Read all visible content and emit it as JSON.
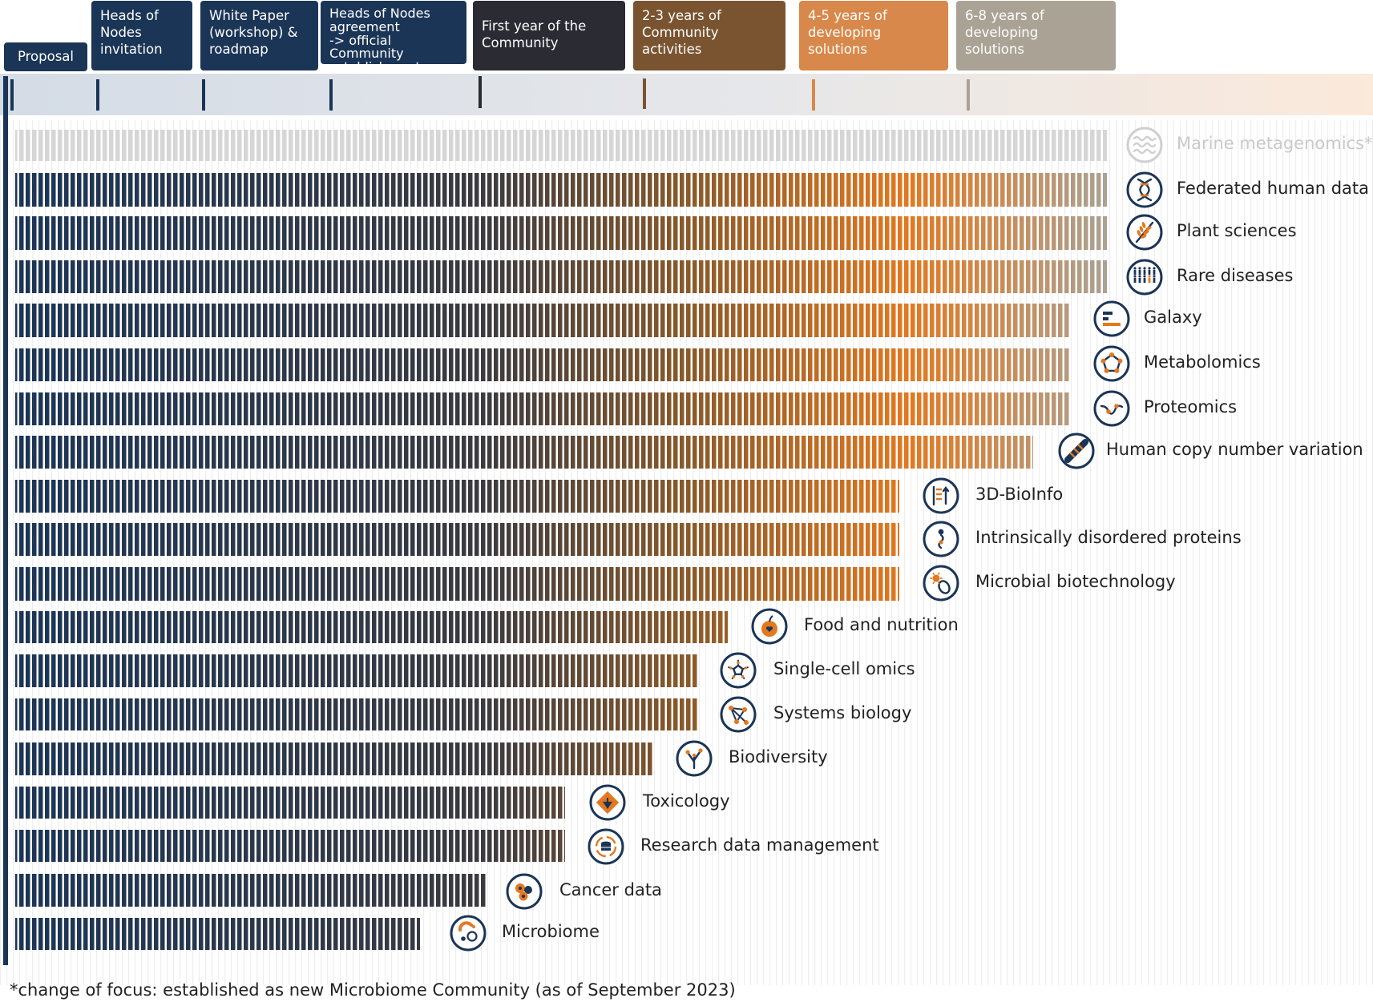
{
  "milestones": [
    {
      "id": "proposal",
      "label": "Proposal",
      "color": "#1b3557"
    },
    {
      "id": "invitation",
      "label": "Heads of\nNodes\ninvitation",
      "color": "#1b3557"
    },
    {
      "id": "whitepaper",
      "label": "White Paper\n(workshop) &\nroadmap",
      "color": "#1b3557"
    },
    {
      "id": "agreement",
      "label": "Heads of Nodes\nagreement\n-> official Community\nestablishment",
      "color": "#1b3557"
    },
    {
      "id": "firstyear",
      "label": "First year of the\nCommunity",
      "color": "#2b2b33"
    },
    {
      "id": "activities",
      "label": "2-3 years of\nCommunity\nactivities",
      "color": "#7a5430"
    },
    {
      "id": "developing45",
      "label": "4-5 years of\ndeveloping\nsolutions",
      "color": "#d8884a"
    },
    {
      "id": "developing68",
      "label": "6-8 years of\ndeveloping\nsolutions",
      "color": "#aaa294"
    }
  ],
  "communities": [
    {
      "name": "Marine metagenomics*",
      "stage": "6-8 years of developing solutions",
      "icon": "waves-icon",
      "faded": true
    },
    {
      "name": "Federated human data",
      "stage": "6-8 years of developing solutions",
      "icon": "dna-helix-icon"
    },
    {
      "name": "Plant sciences",
      "stage": "6-8 years of developing solutions",
      "icon": "wheat-icon"
    },
    {
      "name": "Rare diseases",
      "stage": "6-8 years of developing solutions",
      "icon": "people-icon"
    },
    {
      "name": "Galaxy",
      "stage": "6-8 years of developing solutions",
      "icon": "galaxy-bars-icon"
    },
    {
      "name": "Metabolomics",
      "stage": "6-8 years of developing solutions",
      "icon": "molecule-ring-icon"
    },
    {
      "name": "Proteomics",
      "stage": "6-8 years of developing solutions",
      "icon": "wave-peaks-icon"
    },
    {
      "name": "Human copy number variation",
      "stage": "6-8 years of developing solutions",
      "icon": "chromosome-icon"
    },
    {
      "name": "3D-BioInfo",
      "stage": "4-5 years of developing solutions",
      "icon": "protein-structure-icon"
    },
    {
      "name": "Intrinsically disordered proteins",
      "stage": "4-5 years of developing solutions",
      "icon": "disordered-chain-icon"
    },
    {
      "name": "Microbial biotechnology",
      "stage": "4-5 years of developing solutions",
      "icon": "microbe-icon"
    },
    {
      "name": "Food and nutrition",
      "stage": "2-3 years of Community activities",
      "icon": "apple-icon"
    },
    {
      "name": "Single-cell omics",
      "stage": "2-3 years of Community activities",
      "icon": "cell-icon"
    },
    {
      "name": "Systems biology",
      "stage": "2-3 years of Community activities",
      "icon": "network-icon"
    },
    {
      "name": "Biodiversity",
      "stage": "2-3 years of Community activities",
      "icon": "tree-icon"
    },
    {
      "name": "Toxicology",
      "stage": "2-3 years of Community activities",
      "icon": "hazard-diamond-icon"
    },
    {
      "name": "Research data management",
      "stage": "2-3 years of Community activities",
      "icon": "database-cycle-icon"
    },
    {
      "name": "Cancer data",
      "stage": "First year of the Community",
      "icon": "cancer-cells-icon"
    },
    {
      "name": "Microbiome",
      "stage": "First year of the Community",
      "icon": "microbiome-icon"
    }
  ],
  "footnote": "*change of focus: established as new Microbiome Community (as of September 2023)",
  "colors": {
    "navy": "#1b3557",
    "dark": "#2b2b33",
    "brown": "#7a5430",
    "orange": "#e4781f",
    "taupe": "#aaa294",
    "faded": "#d6d6d6"
  }
}
